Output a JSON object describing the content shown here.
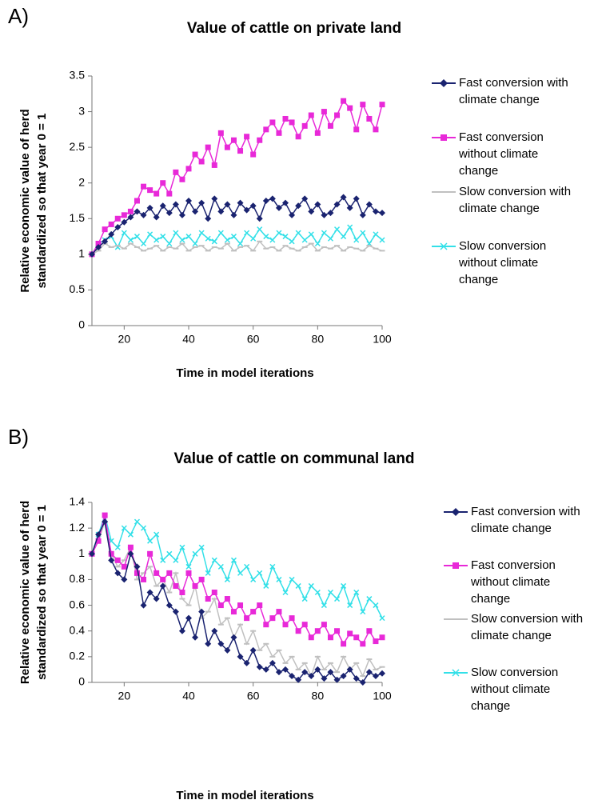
{
  "chart_data": [
    {
      "type": "line",
      "panel_label": "A)",
      "title": "Value of cattle on private land",
      "x_label": "Time in model iterations",
      "y_label": "Relative economic value of herd standardized so that year 0 = 1",
      "x": [
        10,
        12,
        14,
        16,
        18,
        20,
        22,
        24,
        26,
        28,
        30,
        32,
        34,
        36,
        38,
        40,
        42,
        44,
        46,
        48,
        50,
        52,
        54,
        56,
        58,
        60,
        62,
        64,
        66,
        68,
        70,
        72,
        74,
        76,
        78,
        80,
        82,
        84,
        86,
        88,
        90,
        92,
        94,
        96,
        98,
        100
      ],
      "xlim": [
        10,
        100
      ],
      "xticks": [
        20,
        40,
        60,
        80,
        100
      ],
      "ylim": [
        0,
        3.5
      ],
      "yticks": [
        0,
        0.5,
        1,
        1.5,
        2,
        2.5,
        3,
        3.5
      ],
      "series": [
        {
          "name": "Fast conversion with climate change",
          "color": "#1a2370",
          "marker": "diamond",
          "values": [
            1.0,
            1.1,
            1.18,
            1.28,
            1.38,
            1.45,
            1.52,
            1.6,
            1.55,
            1.65,
            1.52,
            1.68,
            1.58,
            1.7,
            1.55,
            1.75,
            1.6,
            1.72,
            1.5,
            1.78,
            1.6,
            1.7,
            1.55,
            1.72,
            1.62,
            1.68,
            1.5,
            1.75,
            1.78,
            1.65,
            1.72,
            1.55,
            1.68,
            1.78,
            1.6,
            1.7,
            1.55,
            1.58,
            1.7,
            1.8,
            1.65,
            1.78,
            1.55,
            1.7,
            1.6,
            1.58
          ]
        },
        {
          "name": "Fast conversion without climate change",
          "color": "#e829d8",
          "marker": "square",
          "values": [
            1.0,
            1.15,
            1.35,
            1.42,
            1.5,
            1.55,
            1.6,
            1.75,
            1.95,
            1.9,
            1.85,
            2.0,
            1.85,
            2.15,
            2.05,
            2.2,
            2.4,
            2.3,
            2.5,
            2.25,
            2.7,
            2.5,
            2.6,
            2.45,
            2.65,
            2.4,
            2.6,
            2.75,
            2.85,
            2.7,
            2.9,
            2.85,
            2.65,
            2.8,
            2.95,
            2.7,
            3.0,
            2.8,
            2.95,
            3.15,
            3.05,
            2.75,
            3.1,
            2.9,
            2.75,
            3.1
          ]
        },
        {
          "name": "Slow conversion with climate change",
          "color": "#c0c0c0",
          "marker": "dash",
          "values": [
            1.0,
            1.05,
            1.15,
            1.1,
            1.12,
            1.08,
            1.15,
            1.1,
            1.05,
            1.08,
            1.12,
            1.05,
            1.1,
            1.08,
            1.15,
            1.05,
            1.1,
            1.12,
            1.05,
            1.1,
            1.08,
            1.15,
            1.05,
            1.1,
            1.12,
            1.05,
            1.18,
            1.08,
            1.1,
            1.05,
            1.12,
            1.08,
            1.05,
            1.1,
            1.15,
            1.05,
            1.1,
            1.08,
            1.12,
            1.05,
            1.1,
            1.08,
            1.05,
            1.12,
            1.08,
            1.05
          ]
        },
        {
          "name": "Slow conversion without climate change",
          "color": "#33e0e8",
          "marker": "x",
          "values": [
            1.0,
            1.15,
            1.2,
            1.25,
            1.1,
            1.3,
            1.2,
            1.25,
            1.15,
            1.28,
            1.2,
            1.25,
            1.15,
            1.3,
            1.2,
            1.25,
            1.15,
            1.3,
            1.22,
            1.18,
            1.3,
            1.2,
            1.25,
            1.15,
            1.3,
            1.22,
            1.35,
            1.25,
            1.2,
            1.3,
            1.25,
            1.18,
            1.3,
            1.2,
            1.28,
            1.15,
            1.3,
            1.22,
            1.35,
            1.25,
            1.38,
            1.2,
            1.3,
            1.15,
            1.28,
            1.2
          ]
        }
      ]
    },
    {
      "type": "line",
      "panel_label": "B)",
      "title": "Value of cattle on communal land",
      "x_label": "Time in model iterations",
      "y_label": "Relative economic value of herd standardized so that year 0 = 1",
      "x": [
        10,
        12,
        14,
        16,
        18,
        20,
        22,
        24,
        26,
        28,
        30,
        32,
        34,
        36,
        38,
        40,
        42,
        44,
        46,
        48,
        50,
        52,
        54,
        56,
        58,
        60,
        62,
        64,
        66,
        68,
        70,
        72,
        74,
        76,
        78,
        80,
        82,
        84,
        86,
        88,
        90,
        92,
        94,
        96,
        98,
        100
      ],
      "xlim": [
        10,
        100
      ],
      "xticks": [
        20,
        40,
        60,
        80,
        100
      ],
      "ylim": [
        0,
        1.4
      ],
      "yticks": [
        0,
        0.2,
        0.4,
        0.6,
        0.8,
        1,
        1.2,
        1.4
      ],
      "series": [
        {
          "name": "Fast conversion with climate change",
          "color": "#1a2370",
          "marker": "diamond",
          "values": [
            1.0,
            1.15,
            1.25,
            0.95,
            0.85,
            0.8,
            1.0,
            0.9,
            0.6,
            0.7,
            0.65,
            0.75,
            0.6,
            0.55,
            0.4,
            0.5,
            0.35,
            0.55,
            0.3,
            0.4,
            0.3,
            0.25,
            0.35,
            0.2,
            0.15,
            0.25,
            0.12,
            0.1,
            0.15,
            0.08,
            0.1,
            0.05,
            0.02,
            0.08,
            0.05,
            0.1,
            0.03,
            0.08,
            0.02,
            0.05,
            0.1,
            0.03,
            0.0,
            0.08,
            0.05,
            0.07
          ]
        },
        {
          "name": "Fast conversion without climate change",
          "color": "#e829d8",
          "marker": "square",
          "values": [
            1.0,
            1.1,
            1.3,
            1.0,
            0.95,
            0.9,
            1.05,
            0.85,
            0.8,
            1.0,
            0.85,
            0.8,
            0.85,
            0.75,
            0.7,
            0.85,
            0.75,
            0.8,
            0.65,
            0.7,
            0.6,
            0.65,
            0.55,
            0.6,
            0.5,
            0.55,
            0.6,
            0.45,
            0.5,
            0.55,
            0.45,
            0.5,
            0.4,
            0.45,
            0.35,
            0.4,
            0.45,
            0.35,
            0.4,
            0.3,
            0.38,
            0.35,
            0.3,
            0.4,
            0.32,
            0.35
          ]
        },
        {
          "name": "Slow conversion with climate change",
          "color": "#c0c0c0",
          "marker": "dash",
          "values": [
            1.0,
            1.1,
            1.25,
            1.0,
            0.9,
            0.95,
            1.05,
            0.8,
            0.85,
            0.9,
            0.75,
            0.8,
            0.7,
            0.85,
            0.65,
            0.6,
            0.75,
            0.5,
            0.55,
            0.65,
            0.45,
            0.5,
            0.35,
            0.45,
            0.3,
            0.4,
            0.25,
            0.3,
            0.2,
            0.25,
            0.15,
            0.2,
            0.1,
            0.15,
            0.05,
            0.2,
            0.1,
            0.15,
            0.08,
            0.2,
            0.1,
            0.15,
            0.05,
            0.18,
            0.1,
            0.12
          ]
        },
        {
          "name": "Slow conversion without climate change",
          "color": "#33e0e8",
          "marker": "x",
          "values": [
            1.0,
            1.15,
            1.3,
            1.1,
            1.05,
            1.2,
            1.15,
            1.25,
            1.2,
            1.1,
            1.15,
            0.95,
            1.0,
            0.95,
            1.05,
            0.9,
            1.0,
            1.05,
            0.85,
            0.95,
            0.9,
            0.8,
            0.95,
            0.85,
            0.9,
            0.8,
            0.85,
            0.75,
            0.9,
            0.8,
            0.7,
            0.8,
            0.75,
            0.65,
            0.75,
            0.7,
            0.6,
            0.7,
            0.65,
            0.75,
            0.6,
            0.7,
            0.55,
            0.65,
            0.6,
            0.5
          ]
        }
      ]
    }
  ]
}
